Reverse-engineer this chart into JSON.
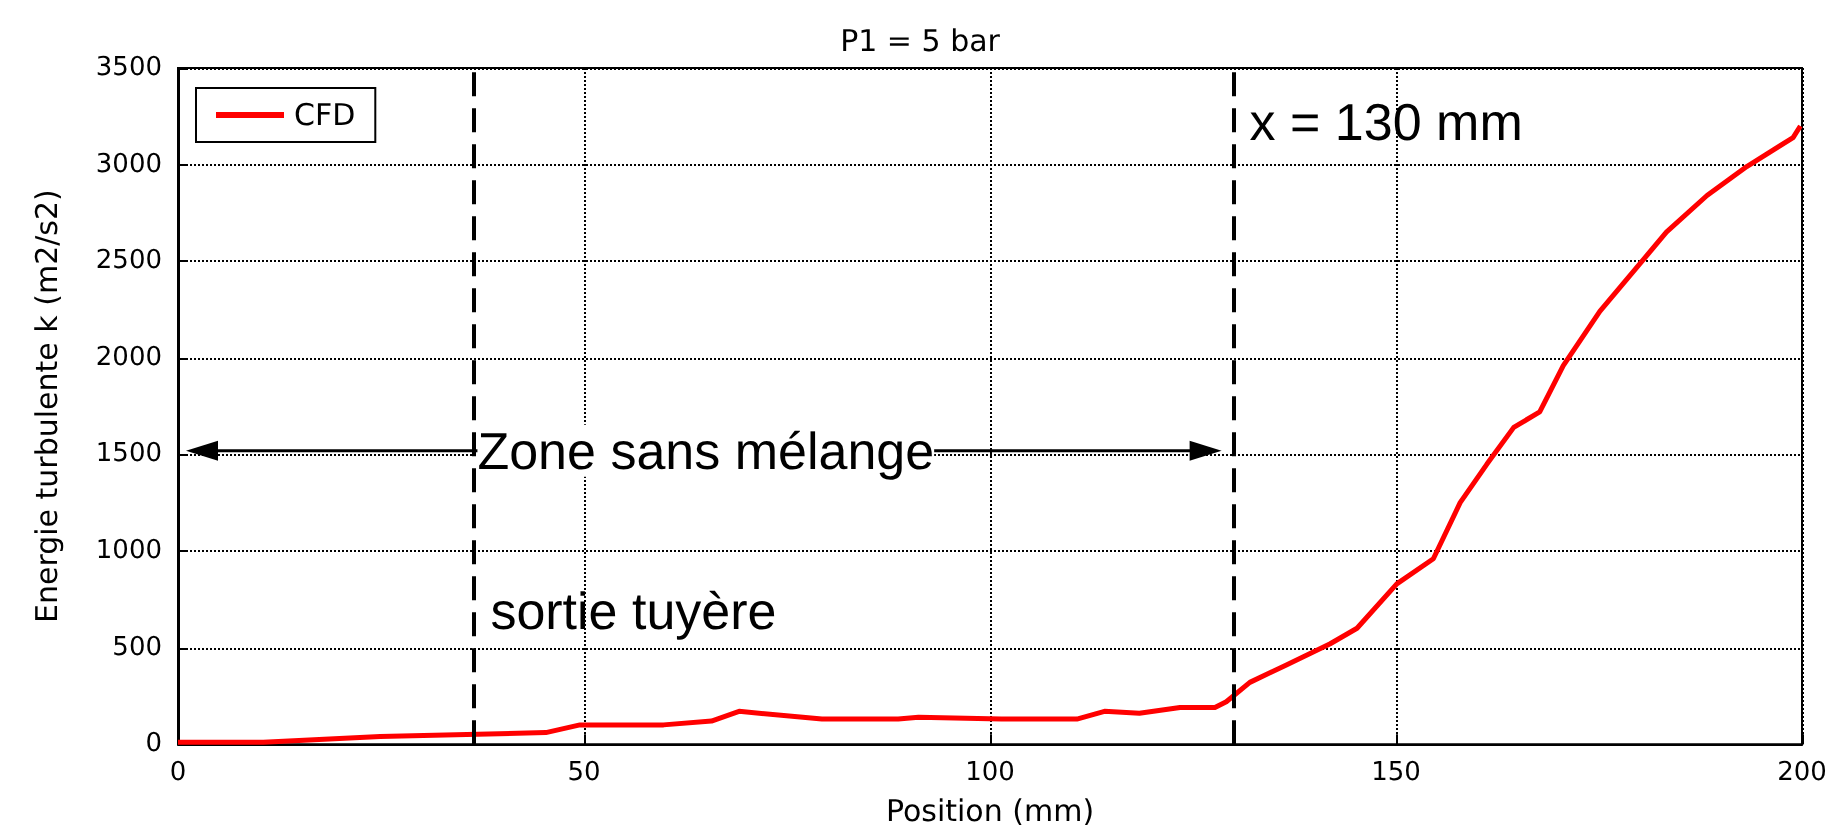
{
  "chart_data": {
    "type": "line",
    "title": "P1 = 5 bar",
    "xlabel": "Position (mm)",
    "ylabel": "Energie turbulente k (m2/s2)",
    "xlim": [
      0,
      200
    ],
    "xticks": [
      0,
      50,
      100,
      150,
      200
    ],
    "ylim": [
      0,
      3500
    ],
    "yticks": [
      0,
      500,
      1000,
      1500,
      2000,
      2500,
      3000,
      3500
    ],
    "grid": true,
    "legend": "top left",
    "marker": "none",
    "line_style": "solid",
    "series": [
      {
        "name": "CFD",
        "color": "#ff0000",
        "x": [
          0,
          10.5,
          24.9,
          45.3,
          49.5,
          59.8,
          65.7,
          69.1,
          79.3,
          88.7,
          91.2,
          101.4,
          110.7,
          114.1,
          118.4,
          123.4,
          127.7,
          129.1,
          132,
          136.5,
          141.9,
          145.2,
          150.1,
          154.6,
          157.9,
          161.2,
          164.5,
          167.7,
          170.6,
          175.1,
          180.9,
          183.3,
          188.3,
          193.2,
          198.9,
          199.8
        ],
        "values": [
          10,
          10,
          40,
          60,
          100,
          100,
          120,
          170,
          130,
          130,
          140,
          130,
          130,
          170,
          160,
          190,
          190,
          220,
          320,
          410,
          520,
          600,
          830,
          960,
          1250,
          1450,
          1640,
          1720,
          1960,
          2240,
          2530,
          2650,
          2840,
          2990,
          3140,
          3200
        ]
      }
    ],
    "ref_lines": [
      {
        "axis": "x",
        "value": 36.5,
        "label": "sortie tuyère",
        "color": "#000000",
        "line_style": "dashed"
      },
      {
        "axis": "x",
        "value": 130,
        "label": "x = 130 mm",
        "color": "#000000",
        "line_style": "dashed"
      }
    ],
    "annotations": [
      "Zone sans mélange"
    ]
  }
}
